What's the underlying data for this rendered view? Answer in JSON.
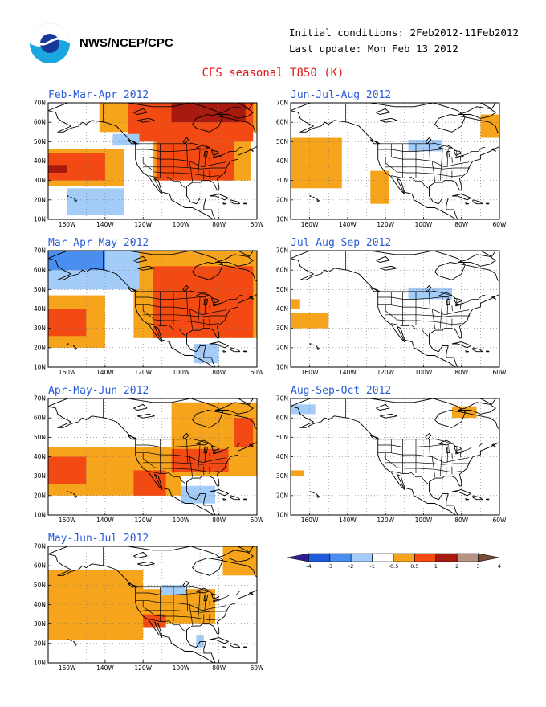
{
  "header": {
    "org": "NWS/NCEP/CPC",
    "initial_conditions": "Initial conditions: 2Feb2012-11Feb2012",
    "last_update": "Last update: Mon Feb 13 2012",
    "title": "CFS seasonal T850 (K)"
  },
  "axes": {
    "lat_labels": [
      "70N",
      "60N",
      "50N",
      "40N",
      "30N",
      "20N",
      "10N"
    ],
    "lon_labels": [
      "160W",
      "140W",
      "120W",
      "100W",
      "80W",
      "60W"
    ]
  },
  "legend": {
    "tick_labels": [
      "-4",
      "-3",
      "-2",
      "-1",
      "-0.5",
      "0.5",
      "1",
      "2",
      "3",
      "4"
    ],
    "colors": [
      "#2c1e9b",
      "#1f5bd8",
      "#4a8ef0",
      "#a4ccf8",
      "#ffffff",
      "#f6a41c",
      "#f24a12",
      "#a81a10",
      "#b89484",
      "#7a4a38"
    ]
  },
  "colors": {
    "plus05": "#f6a41c",
    "plus1": "#f24a12",
    "plus2": "#a81a10",
    "minus05": "#a4ccf8",
    "minus1": "#4a8ef0"
  },
  "panels": [
    {
      "id": "fma",
      "title": "Feb-Mar-Apr 2012",
      "anomalies": [
        {
          "level": "plus05",
          "lon": [
            -143,
            -60
          ],
          "lat": [
            55,
            70
          ]
        },
        {
          "level": "plus05",
          "lon": [
            -115,
            -63
          ],
          "lat": [
            30,
            55
          ]
        },
        {
          "level": "plus05",
          "lon": [
            -170,
            -130
          ],
          "lat": [
            27,
            46
          ]
        },
        {
          "level": "plus1",
          "lon": [
            -128,
            -62
          ],
          "lat": [
            50,
            70
          ]
        },
        {
          "level": "plus1",
          "lon": [
            -113,
            -72
          ],
          "lat": [
            30,
            50
          ]
        },
        {
          "level": "plus1",
          "lon": [
            -170,
            -140
          ],
          "lat": [
            30,
            44
          ]
        },
        {
          "level": "plus2",
          "lon": [
            -105,
            -66
          ],
          "lat": [
            60,
            70
          ]
        },
        {
          "level": "plus2",
          "lon": [
            -170,
            -160
          ],
          "lat": [
            34,
            38
          ]
        },
        {
          "level": "minus05",
          "lon": [
            -160,
            -130
          ],
          "lat": [
            12,
            26
          ]
        },
        {
          "level": "minus05",
          "lon": [
            -136,
            -122
          ],
          "lat": [
            48,
            54
          ]
        }
      ]
    },
    {
      "id": "jja",
      "title": "Jun-Jul-Aug 2012",
      "anomalies": [
        {
          "level": "plus05",
          "lon": [
            -170,
            -143
          ],
          "lat": [
            26,
            52
          ]
        },
        {
          "level": "plus05",
          "lon": [
            -128,
            -118
          ],
          "lat": [
            18,
            35
          ]
        },
        {
          "level": "plus05",
          "lon": [
            -70,
            -60
          ],
          "lat": [
            52,
            64
          ]
        },
        {
          "level": "minus05",
          "lon": [
            -108,
            -90
          ],
          "lat": [
            45,
            51
          ]
        }
      ]
    },
    {
      "id": "mam",
      "title": "Mar-Apr-May 2012",
      "anomalies": [
        {
          "level": "plus05",
          "lon": [
            -125,
            -60
          ],
          "lat": [
            25,
            70
          ]
        },
        {
          "level": "plus05",
          "lon": [
            -170,
            -140
          ],
          "lat": [
            20,
            47
          ]
        },
        {
          "level": "plus1",
          "lon": [
            -115,
            -62
          ],
          "lat": [
            25,
            62
          ]
        },
        {
          "level": "plus1",
          "lon": [
            -170,
            -150
          ],
          "lat": [
            26,
            40
          ]
        },
        {
          "level": "minus05",
          "lon": [
            -170,
            -122
          ],
          "lat": [
            50,
            70
          ]
        },
        {
          "level": "minus05",
          "lon": [
            -93,
            -80
          ],
          "lat": [
            12,
            22
          ]
        },
        {
          "level": "minus1",
          "lon": [
            -170,
            -140
          ],
          "lat": [
            60,
            70
          ]
        }
      ]
    },
    {
      "id": "jas",
      "title": "Jul-Aug-Sep 2012",
      "anomalies": [
        {
          "level": "plus05",
          "lon": [
            -170,
            -150
          ],
          "lat": [
            30,
            38
          ]
        },
        {
          "level": "plus05",
          "lon": [
            -170,
            -165
          ],
          "lat": [
            40,
            45
          ]
        },
        {
          "level": "minus05",
          "lon": [
            -108,
            -85
          ],
          "lat": [
            45,
            51
          ]
        }
      ]
    },
    {
      "id": "amj",
      "title": "Apr-May-Jun 2012",
      "anomalies": [
        {
          "level": "plus05",
          "lon": [
            -170,
            -100
          ],
          "lat": [
            20,
            45
          ]
        },
        {
          "level": "plus05",
          "lon": [
            -105,
            -60
          ],
          "lat": [
            30,
            68
          ]
        },
        {
          "level": "plus1",
          "lon": [
            -170,
            -150
          ],
          "lat": [
            26,
            40
          ]
        },
        {
          "level": "plus1",
          "lon": [
            -125,
            -108
          ],
          "lat": [
            20,
            33
          ]
        },
        {
          "level": "plus1",
          "lon": [
            -105,
            -75
          ],
          "lat": [
            32,
            44
          ]
        },
        {
          "level": "plus1",
          "lon": [
            -72,
            -62
          ],
          "lat": [
            45,
            60
          ]
        },
        {
          "level": "minus05",
          "lon": [
            -100,
            -82
          ],
          "lat": [
            16,
            25
          ]
        }
      ]
    },
    {
      "id": "aso",
      "title": "Aug-Sep-Oct 2012",
      "anomalies": [
        {
          "level": "plus05",
          "lon": [
            -170,
            -163
          ],
          "lat": [
            30,
            33
          ]
        },
        {
          "level": "plus05",
          "lon": [
            -85,
            -72
          ],
          "lat": [
            60,
            66
          ]
        },
        {
          "level": "minus05",
          "lon": [
            -170,
            -157
          ],
          "lat": [
            62,
            67
          ]
        }
      ]
    },
    {
      "id": "mjj",
      "title": "May-Jun-Jul 2012",
      "anomalies": [
        {
          "level": "plus05",
          "lon": [
            -170,
            -120
          ],
          "lat": [
            22,
            58
          ]
        },
        {
          "level": "plus05",
          "lon": [
            -120,
            -82
          ],
          "lat": [
            30,
            48
          ]
        },
        {
          "level": "plus05",
          "lon": [
            -78,
            -60
          ],
          "lat": [
            55,
            70
          ]
        },
        {
          "level": "plus1",
          "lon": [
            -120,
            -108
          ],
          "lat": [
            28,
            35
          ]
        },
        {
          "level": "minus05",
          "lon": [
            -110,
            -98
          ],
          "lat": [
            45,
            50
          ]
        },
        {
          "level": "minus05",
          "lon": [
            -92,
            -88
          ],
          "lat": [
            18,
            24
          ]
        }
      ]
    }
  ]
}
